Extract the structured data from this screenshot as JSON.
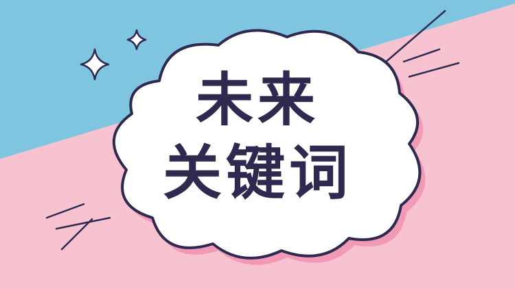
{
  "title": {
    "line1": "未来",
    "line2": "关键词"
  },
  "colors": {
    "background_pink": "#f7c3d1",
    "band_blue": "#7fc5e0",
    "cloud_fill": "#ffffff",
    "cloud_outline": "#2e2a4f",
    "cloud_shadow": "#f29ab5",
    "text": "#2e2a4f"
  },
  "icons": [
    "sparkle-icon",
    "sparkle-icon",
    "speed-lines-top-right",
    "speed-lines-bottom-left"
  ]
}
